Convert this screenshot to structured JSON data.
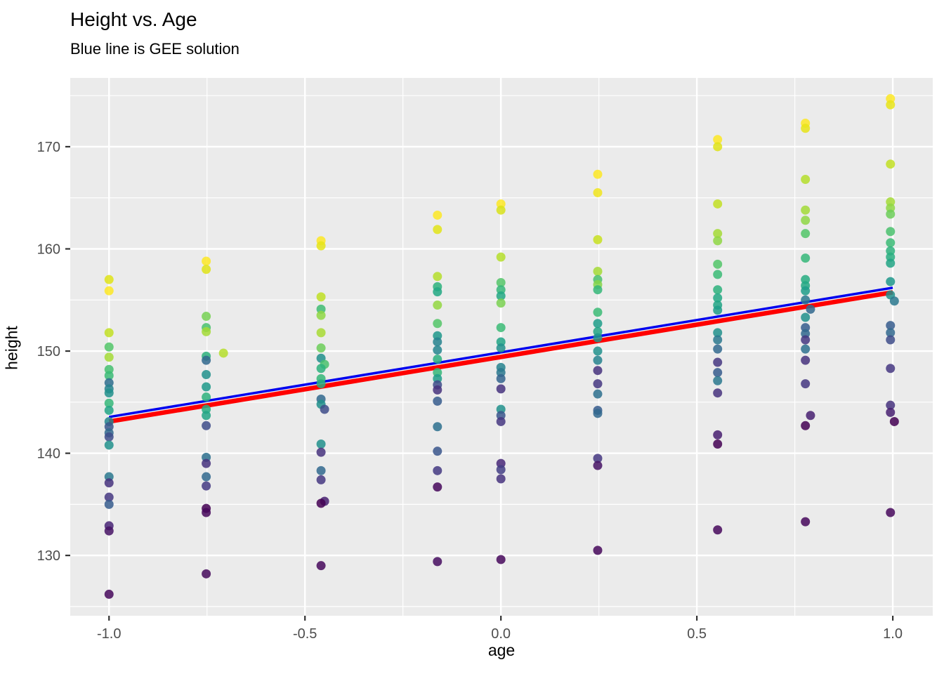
{
  "header": {
    "title": "Height vs. Age",
    "subtitle": "Blue line is GEE solution"
  },
  "chart_data": {
    "type": "scatter",
    "title": "Height vs. Age",
    "subtitle": "Blue line is GEE solution",
    "xlabel": "age",
    "ylabel": "height",
    "xlim": [
      -1.099,
      1.102
    ],
    "ylim": [
      124.1,
      176.73
    ],
    "x_ticks": [
      -1.0,
      -0.5,
      0.0,
      0.5,
      1.0
    ],
    "x_tick_labels": [
      "-1.0",
      "-0.5",
      "0.0",
      "0.5",
      "1.0"
    ],
    "x_minor_ticks": [
      -0.75,
      -0.25,
      0.25,
      0.75
    ],
    "y_ticks": [
      130,
      140,
      150,
      160,
      170
    ],
    "y_tick_labels": [
      "130",
      "140",
      "150",
      "160",
      "170"
    ],
    "y_minor_ticks": [
      125,
      135,
      145,
      155,
      165,
      175
    ],
    "grid": true,
    "legend_position": "none",
    "panel_bg": "#EBEBEB",
    "grid_color": "#FFFFFF",
    "tick_label_color": "#4D4D4D",
    "tick_mark_color": "#333333",
    "point_radius": 6.5,
    "point_alpha": 0.85,
    "lines": [
      {
        "name": "red-fit-line",
        "color": "#FF0000",
        "width": 6.5,
        "x0": -1.0,
        "y0": 143.1,
        "x1": 1.0,
        "y1": 155.75
      },
      {
        "name": "gee-blue-line",
        "color": "#0000EE",
        "width": 3.5,
        "x0": -1.0,
        "y0": 143.55,
        "x1": 1.0,
        "y1": 156.2
      }
    ],
    "series": [
      {
        "name": "height-observations",
        "points": [
          [
            -1.0,
            157.0,
            "#DFE318"
          ],
          [
            -1.0,
            155.9,
            "#FDE725"
          ],
          [
            -1.0,
            151.8,
            "#C2DF23"
          ],
          [
            -1.0,
            150.4,
            "#52C569"
          ],
          [
            -1.0,
            149.4,
            "#A5DB36"
          ],
          [
            -1.0,
            148.2,
            "#44BF70"
          ],
          [
            -1.0,
            147.6,
            "#3BBB75"
          ],
          [
            -1.0,
            146.9,
            "#2E6D8E"
          ],
          [
            -1.0,
            146.3,
            "#26828E"
          ],
          [
            -1.0,
            145.9,
            "#21918C"
          ],
          [
            -1.0,
            144.9,
            "#35B779"
          ],
          [
            -1.0,
            144.2,
            "#21A585"
          ],
          [
            -1.0,
            143.1,
            "#25858E"
          ],
          [
            -1.0,
            142.6,
            "#39568C"
          ],
          [
            -1.0,
            142.0,
            "#31688E"
          ],
          [
            -1.0,
            141.6,
            "#3E4C8A"
          ],
          [
            -1.0,
            140.8,
            "#21918C"
          ],
          [
            -1.0,
            137.7,
            "#2A788E"
          ],
          [
            -1.0,
            137.1,
            "#46327E"
          ],
          [
            -1.0,
            135.7,
            "#453781"
          ],
          [
            -1.0,
            135.0,
            "#365C8D"
          ],
          [
            -1.0,
            132.9,
            "#482576"
          ],
          [
            -1.0,
            132.4,
            "#471365"
          ],
          [
            -1.0,
            126.2,
            "#46085C"
          ],
          [
            -0.752,
            158.8,
            "#FDE725"
          ],
          [
            -0.752,
            158.0,
            "#DFE318"
          ],
          [
            -0.752,
            153.4,
            "#77D153"
          ],
          [
            -0.752,
            152.3,
            "#4AC16D"
          ],
          [
            -0.752,
            151.9,
            "#A5DB36"
          ],
          [
            -0.708,
            149.8,
            "#B5DE2B"
          ],
          [
            -0.752,
            149.5,
            "#2DB27D"
          ],
          [
            -0.752,
            149.1,
            "#31688E"
          ],
          [
            -0.752,
            147.7,
            "#21918C"
          ],
          [
            -0.752,
            146.5,
            "#1F998A"
          ],
          [
            -0.752,
            145.5,
            "#2DB27D"
          ],
          [
            -0.752,
            144.3,
            "#27AD81"
          ],
          [
            -0.752,
            143.7,
            "#21A585"
          ],
          [
            -0.752,
            142.7,
            "#3E4C8A"
          ],
          [
            -0.752,
            139.6,
            "#2D708E"
          ],
          [
            -0.752,
            139.0,
            "#46327E"
          ],
          [
            -0.752,
            137.7,
            "#31688E"
          ],
          [
            -0.752,
            136.8,
            "#443983"
          ],
          [
            -0.752,
            134.6,
            "#440154"
          ],
          [
            -0.752,
            134.2,
            "#46085C"
          ],
          [
            -0.752,
            128.2,
            "#450A5C"
          ],
          [
            -0.459,
            160.8,
            "#FDE725"
          ],
          [
            -0.459,
            160.3,
            "#E5E419"
          ],
          [
            -0.459,
            155.3,
            "#C0DF25"
          ],
          [
            -0.459,
            154.1,
            "#3FBC73"
          ],
          [
            -0.459,
            153.5,
            "#8FD744"
          ],
          [
            -0.459,
            151.8,
            "#A8DB34"
          ],
          [
            -0.459,
            150.3,
            "#6CCE59"
          ],
          [
            -0.459,
            149.3,
            "#21918C"
          ],
          [
            -0.45,
            148.7,
            "#4AC16D"
          ],
          [
            -0.459,
            148.3,
            "#2DB27D"
          ],
          [
            -0.459,
            147.3,
            "#35B779"
          ],
          [
            -0.459,
            146.8,
            "#28AE80"
          ],
          [
            -0.459,
            145.3,
            "#31688E"
          ],
          [
            -0.459,
            144.8,
            "#21918C"
          ],
          [
            -0.45,
            144.3,
            "#3E4C8A"
          ],
          [
            -0.459,
            140.9,
            "#21918C"
          ],
          [
            -0.459,
            140.1,
            "#46327E"
          ],
          [
            -0.459,
            138.3,
            "#31688E"
          ],
          [
            -0.459,
            137.4,
            "#453781"
          ],
          [
            -0.45,
            135.3,
            "#482071"
          ],
          [
            -0.459,
            135.1,
            "#440154"
          ],
          [
            -0.459,
            129.0,
            "#46085C"
          ],
          [
            -0.162,
            163.3,
            "#FDE725"
          ],
          [
            -0.162,
            161.9,
            "#E2E418"
          ],
          [
            -0.162,
            157.3,
            "#B5DE2B"
          ],
          [
            -0.162,
            156.3,
            "#2DB27D"
          ],
          [
            -0.162,
            155.8,
            "#22A884"
          ],
          [
            -0.162,
            154.5,
            "#93D741"
          ],
          [
            -0.162,
            152.7,
            "#54C568"
          ],
          [
            -0.162,
            151.5,
            "#1F988B"
          ],
          [
            -0.162,
            150.9,
            "#26828E"
          ],
          [
            -0.162,
            150.1,
            "#25858E"
          ],
          [
            -0.162,
            149.2,
            "#2AB07F"
          ],
          [
            -0.162,
            147.9,
            "#35B779"
          ],
          [
            -0.162,
            147.3,
            "#1F9E89"
          ],
          [
            -0.162,
            146.7,
            "#3E4C8A"
          ],
          [
            -0.162,
            146.2,
            "#46327E"
          ],
          [
            -0.162,
            145.1,
            "#365C8D"
          ],
          [
            -0.162,
            142.6,
            "#2D708E"
          ],
          [
            -0.162,
            140.2,
            "#39568C"
          ],
          [
            -0.162,
            138.3,
            "#443983"
          ],
          [
            -0.162,
            136.7,
            "#46085C"
          ],
          [
            -0.162,
            129.4,
            "#470D60"
          ],
          [
            0.0,
            164.4,
            "#FDE725"
          ],
          [
            0.0,
            163.8,
            "#D8E219"
          ],
          [
            0.0,
            159.2,
            "#B5DE2B"
          ],
          [
            0.0,
            156.7,
            "#54C568"
          ],
          [
            0.0,
            156.0,
            "#35B779"
          ],
          [
            0.0,
            155.4,
            "#22A884"
          ],
          [
            0.0,
            154.7,
            "#7AD151"
          ],
          [
            0.0,
            152.3,
            "#3BBB75"
          ],
          [
            0.0,
            150.9,
            "#21A585"
          ],
          [
            0.0,
            150.3,
            "#21918C"
          ],
          [
            0.0,
            148.4,
            "#26828E"
          ],
          [
            0.0,
            147.9,
            "#2A788E"
          ],
          [
            0.0,
            147.3,
            "#33638D"
          ],
          [
            0.0,
            146.3,
            "#46327E"
          ],
          [
            0.0,
            144.3,
            "#21918C"
          ],
          [
            0.0,
            143.7,
            "#39568C"
          ],
          [
            0.0,
            143.1,
            "#453781"
          ],
          [
            0.0,
            139.0,
            "#482878"
          ],
          [
            0.0,
            138.4,
            "#433E85"
          ],
          [
            0.0,
            137.5,
            "#46327E"
          ],
          [
            0.0,
            129.6,
            "#46085C"
          ],
          [
            0.247,
            167.3,
            "#FDE725"
          ],
          [
            0.247,
            165.5,
            "#F1E51D"
          ],
          [
            0.247,
            160.9,
            "#C8E020"
          ],
          [
            0.247,
            157.8,
            "#A5DB36"
          ],
          [
            0.247,
            157.0,
            "#4AC16D"
          ],
          [
            0.247,
            156.5,
            "#86D549"
          ],
          [
            0.247,
            156.0,
            "#35B779"
          ],
          [
            0.247,
            153.8,
            "#3BBB75"
          ],
          [
            0.247,
            152.7,
            "#1F9E89"
          ],
          [
            0.247,
            151.9,
            "#21A585"
          ],
          [
            0.247,
            151.3,
            "#1F988B"
          ],
          [
            0.247,
            150.0,
            "#21918C"
          ],
          [
            0.247,
            149.1,
            "#26828E"
          ],
          [
            0.247,
            148.1,
            "#46327E"
          ],
          [
            0.247,
            146.8,
            "#453781"
          ],
          [
            0.247,
            145.8,
            "#2D708E"
          ],
          [
            0.247,
            144.2,
            "#365C8D"
          ],
          [
            0.247,
            143.9,
            "#31688E"
          ],
          [
            0.247,
            139.5,
            "#453781"
          ],
          [
            0.247,
            138.8,
            "#471365"
          ],
          [
            0.247,
            130.5,
            "#46085C"
          ],
          [
            0.553,
            170.7,
            "#FDE725"
          ],
          [
            0.553,
            170.0,
            "#DFE318"
          ],
          [
            0.553,
            164.4,
            "#C2DF23"
          ],
          [
            0.553,
            161.5,
            "#A5DB36"
          ],
          [
            0.553,
            160.8,
            "#8FD744"
          ],
          [
            0.553,
            158.5,
            "#52C569"
          ],
          [
            0.553,
            157.5,
            "#3BBB75"
          ],
          [
            0.553,
            156.0,
            "#2DB27D"
          ],
          [
            0.553,
            155.2,
            "#22A884"
          ],
          [
            0.553,
            154.5,
            "#21A585"
          ],
          [
            0.553,
            154.0,
            "#1F9E89"
          ],
          [
            0.553,
            151.8,
            "#21918C"
          ],
          [
            0.553,
            151.1,
            "#2A788E"
          ],
          [
            0.553,
            150.2,
            "#31688E"
          ],
          [
            0.553,
            148.9,
            "#453781"
          ],
          [
            0.553,
            147.9,
            "#365C8D"
          ],
          [
            0.553,
            147.1,
            "#2A788E"
          ],
          [
            0.553,
            145.9,
            "#46327E"
          ],
          [
            0.553,
            141.8,
            "#481F70"
          ],
          [
            0.553,
            140.9,
            "#440154"
          ],
          [
            0.553,
            132.5,
            "#46085C"
          ],
          [
            0.777,
            172.3,
            "#FDE725"
          ],
          [
            0.777,
            171.8,
            "#E8E419"
          ],
          [
            0.777,
            166.8,
            "#B5DE2B"
          ],
          [
            0.777,
            163.8,
            "#A2DA37"
          ],
          [
            0.777,
            162.8,
            "#8FD744"
          ],
          [
            0.777,
            161.5,
            "#52C569"
          ],
          [
            0.777,
            159.1,
            "#35B779"
          ],
          [
            0.777,
            157.0,
            "#27AD81"
          ],
          [
            0.777,
            156.4,
            "#22A884"
          ],
          [
            0.777,
            155.9,
            "#1F9E89"
          ],
          [
            0.777,
            155.0,
            "#2A788E"
          ],
          [
            0.79,
            154.1,
            "#31688E"
          ],
          [
            0.777,
            153.3,
            "#21918C"
          ],
          [
            0.777,
            152.3,
            "#365C8D"
          ],
          [
            0.777,
            151.7,
            "#31688E"
          ],
          [
            0.777,
            151.1,
            "#453781"
          ],
          [
            0.777,
            150.2,
            "#2D708E"
          ],
          [
            0.777,
            149.1,
            "#46327E"
          ],
          [
            0.777,
            146.8,
            "#453781"
          ],
          [
            0.79,
            143.7,
            "#482071"
          ],
          [
            0.777,
            142.7,
            "#440154"
          ],
          [
            0.777,
            133.3,
            "#46085C"
          ],
          [
            0.994,
            174.7,
            "#FDE725"
          ],
          [
            0.994,
            174.1,
            "#E8E419"
          ],
          [
            0.994,
            168.3,
            "#C2DF23"
          ],
          [
            0.994,
            164.6,
            "#A5DB36"
          ],
          [
            0.994,
            164.0,
            "#8FD744"
          ],
          [
            0.994,
            163.4,
            "#6CCE59"
          ],
          [
            0.994,
            161.7,
            "#4AC16D"
          ],
          [
            0.994,
            160.6,
            "#3BBB75"
          ],
          [
            0.994,
            159.8,
            "#2DB27D"
          ],
          [
            0.994,
            159.2,
            "#28AE80"
          ],
          [
            0.994,
            158.6,
            "#21A585"
          ],
          [
            0.994,
            156.8,
            "#1F988B"
          ],
          [
            0.994,
            155.5,
            "#21918C"
          ],
          [
            1.004,
            154.9,
            "#2A788E"
          ],
          [
            0.994,
            152.5,
            "#365C8D"
          ],
          [
            0.994,
            151.8,
            "#31688E"
          ],
          [
            0.994,
            151.1,
            "#3E4C8A"
          ],
          [
            0.994,
            148.3,
            "#453781"
          ],
          [
            0.994,
            144.7,
            "#46327E"
          ],
          [
            0.994,
            144.0,
            "#482071"
          ],
          [
            1.004,
            143.1,
            "#440154"
          ],
          [
            0.994,
            134.2,
            "#46085C"
          ]
        ]
      }
    ]
  }
}
